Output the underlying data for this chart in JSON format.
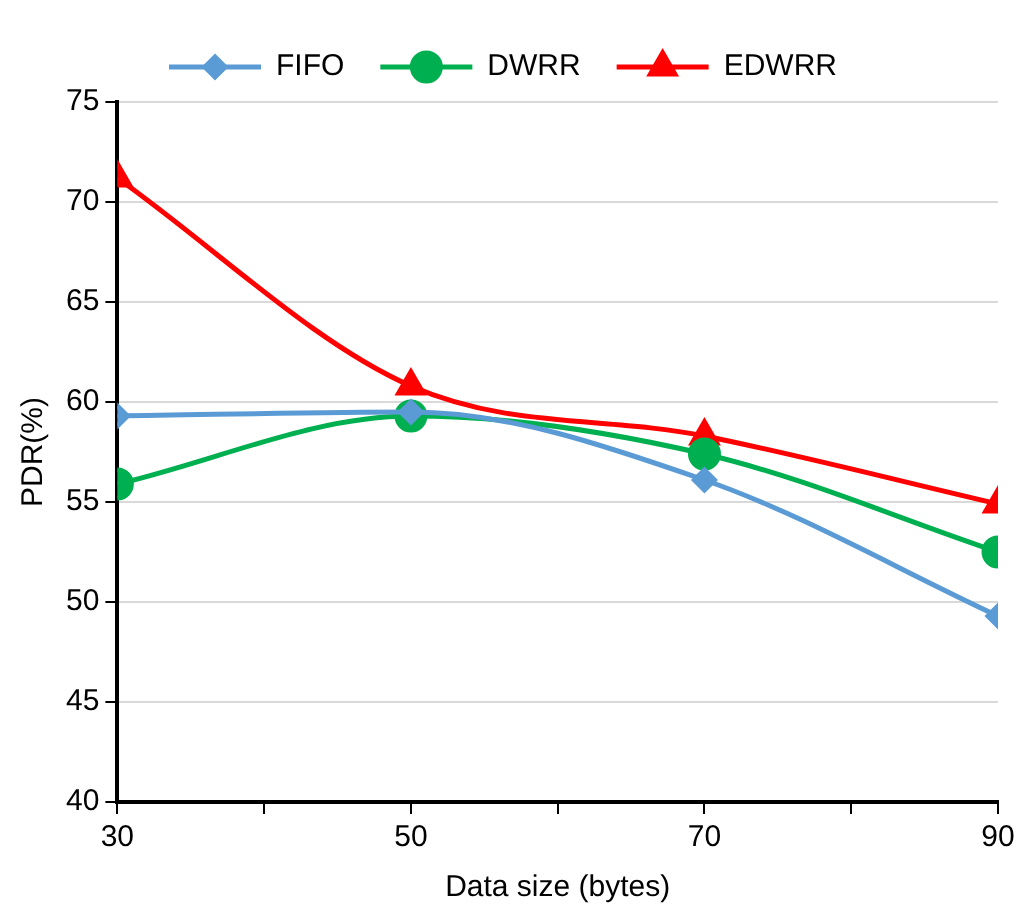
{
  "chart_data": {
    "type": "line",
    "xlabel": "Data size (bytes)",
    "ylabel": "PDR(%)",
    "x": [
      30,
      50,
      70,
      90
    ],
    "series": [
      {
        "name": "FIFO",
        "color": "#5b9bd5",
        "marker": "diamond",
        "values": [
          59.3,
          59.5,
          56.1,
          49.3
        ]
      },
      {
        "name": "DWRR",
        "color": "#00b050",
        "marker": "circle",
        "values": [
          55.9,
          59.3,
          57.4,
          52.5
        ]
      },
      {
        "name": "EDWRR",
        "color": "#ff0000",
        "marker": "triangle",
        "values": [
          71.2,
          60.8,
          58.3,
          54.9
        ]
      }
    ],
    "xlim": [
      30,
      90
    ],
    "xticks": [
      30,
      {
        "value": 40,
        "label": null
      },
      50,
      {
        "value": 60,
        "label": null
      },
      70,
      {
        "value": 80,
        "label": null
      },
      90
    ],
    "ylim": [
      40,
      75
    ],
    "yticks": [
      40,
      45,
      50,
      55,
      60,
      65,
      70,
      75
    ],
    "grid": "y",
    "legend": "top"
  }
}
